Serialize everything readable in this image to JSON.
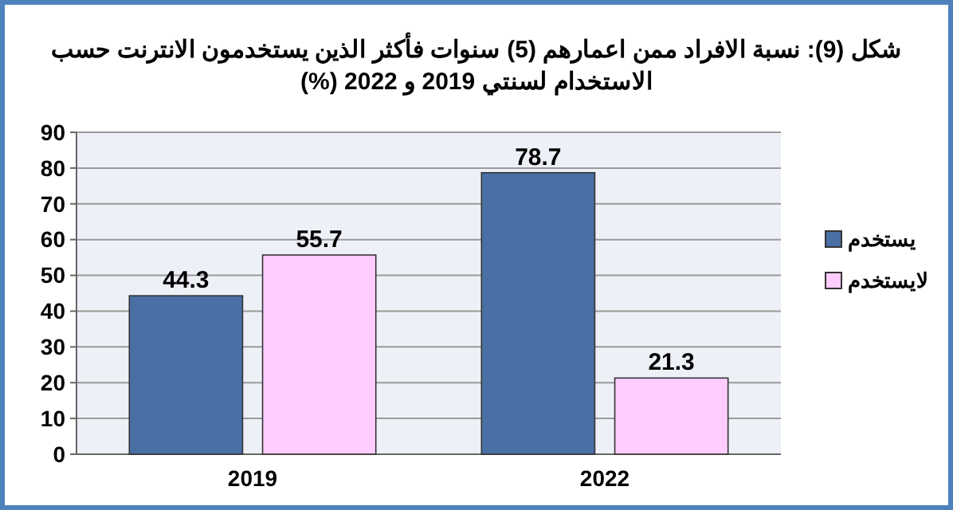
{
  "chart_data": {
    "type": "bar",
    "title": "شكل (9): نسبة الافراد ممن اعمارهم (5) سنوات فأكثر الذين يستخدمون الانترنت حسب الاستخدام لسنتي 2019 و 2022 (%)",
    "categories": [
      "2019",
      "2022"
    ],
    "series": [
      {
        "name": "يستخدم",
        "color": "#4a6fa5",
        "values": [
          44.3,
          78.7
        ]
      },
      {
        "name": "لايستخدم",
        "color": "#ffccff",
        "values": [
          55.7,
          21.3
        ]
      }
    ],
    "ylim": [
      0,
      90
    ],
    "yticks": [
      0,
      10,
      20,
      30,
      40,
      50,
      60,
      70,
      80,
      90
    ],
    "grid": "y",
    "legend": "right",
    "data_labels": true
  }
}
